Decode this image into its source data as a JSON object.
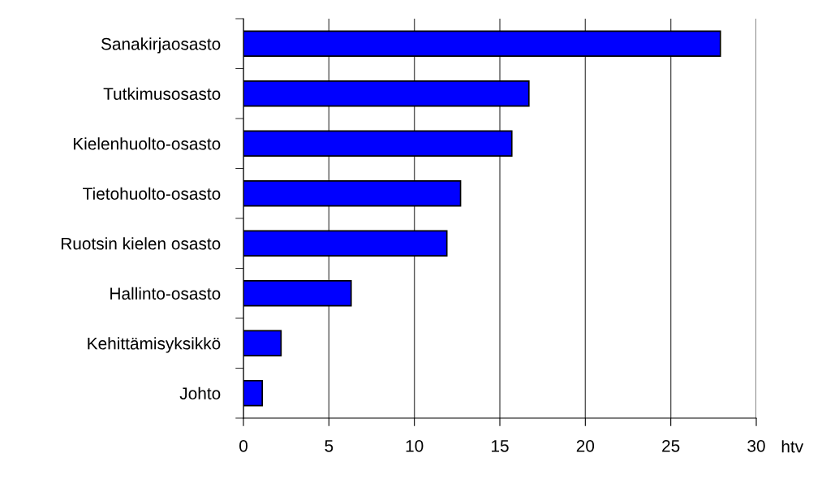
{
  "chart_data": {
    "type": "bar",
    "orientation": "horizontal",
    "xlabel": "htv",
    "categories": [
      "Sanakirjaosasto",
      "Tutkimusosasto",
      "Kielenhuolto-osasto",
      "Tietohuolto-osasto",
      "Ruotsin kielen osasto",
      "Hallinto-osasto",
      "Kehittämisyksikkö",
      "Johto"
    ],
    "values": [
      27.9,
      16.7,
      15.7,
      12.7,
      11.9,
      6.3,
      2.2,
      1.1
    ],
    "color": "#0000ff",
    "xlim": [
      0,
      30
    ],
    "xticks": [
      0,
      5,
      10,
      15,
      20,
      25,
      30
    ],
    "grid": "x"
  }
}
